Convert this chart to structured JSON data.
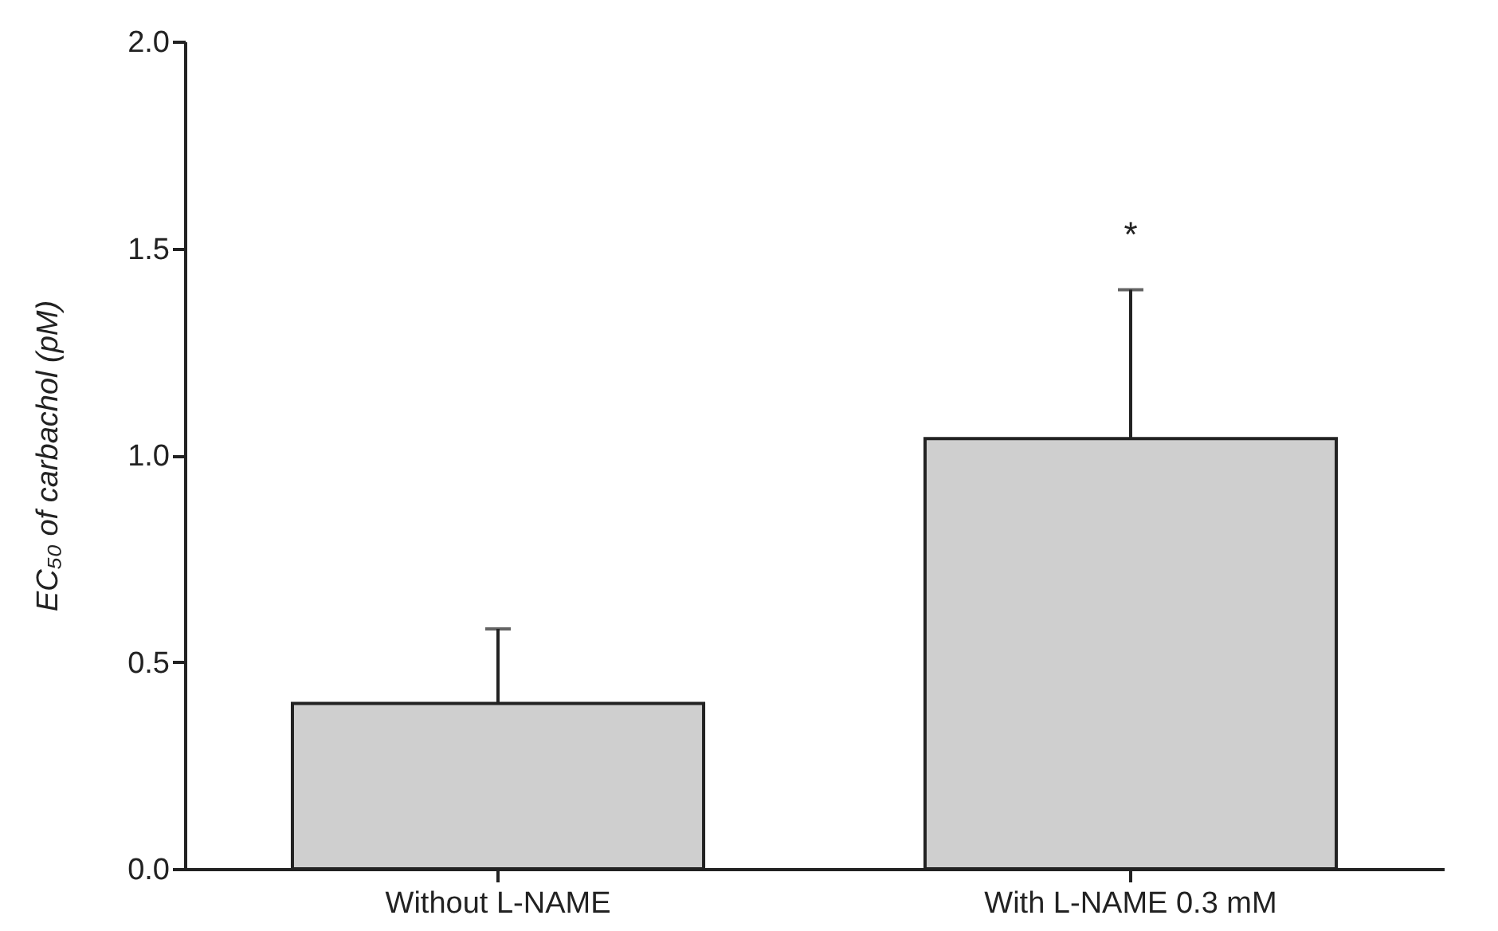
{
  "chart_data": {
    "type": "bar",
    "ylabel": "EC₅₀ of carbachol (pM)",
    "categories": [
      "Without L-NAME",
      "With L-NAME 0.3 mM"
    ],
    "values": [
      0.4,
      1.04
    ],
    "color": "#cfcfcf",
    "errors": [
      [
        0.4,
        0.58
      ],
      [
        1.04,
        1.4
      ]
    ],
    "ylim": [
      0,
      2.0
    ],
    "yticks": [
      {
        "value": 0,
        "label": "0.0"
      },
      {
        "value": 0.5,
        "label": "0.5"
      },
      {
        "value": 1,
        "label": "1.0"
      },
      {
        "value": 1.5,
        "label": "1.5"
      },
      {
        "value": 2,
        "label": "2.0"
      }
    ],
    "annotations": [
      "*"
    ],
    "grid": false
  }
}
